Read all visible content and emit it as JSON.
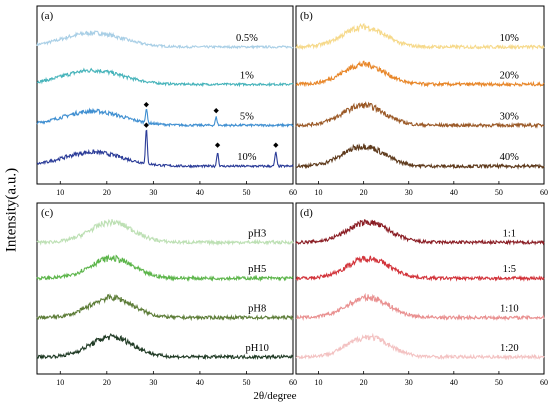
{
  "figure": {
    "ylabel": "Intensity(a.u.)",
    "xlabel": "2θ/degree",
    "line_color_note": ""
  },
  "chart_data": [
    {
      "type": "line",
      "panel_label": "(a)",
      "xlim": [
        5,
        60
      ],
      "xticks": [
        10,
        20,
        30,
        40,
        50,
        60
      ],
      "y_ticks_shown": false,
      "series": [
        {
          "name": "0.5%",
          "color": "#a9cfe6",
          "offset": 3,
          "peak_x": 17,
          "peaks": []
        },
        {
          "name": "1%",
          "color": "#45b3ba",
          "offset": 2,
          "peak_x": 17,
          "peaks": []
        },
        {
          "name": "5%",
          "color": "#3f8fd1",
          "offset": 1,
          "peak_x": 17,
          "peaks": [
            28.5,
            43.5
          ]
        },
        {
          "name": "10%",
          "color": "#2b3c98",
          "offset": 0,
          "peak_x": 17,
          "peaks": [
            28.5,
            43.8,
            56.3
          ]
        }
      ],
      "annotations": [
        {
          "marker": "◆",
          "x": 28.5,
          "series": "5%"
        },
        {
          "marker": "◆",
          "x": 43.5,
          "series": "5%"
        },
        {
          "marker": "◆",
          "x": 28.5,
          "series": "10%"
        },
        {
          "marker": "◆",
          "x": 43.8,
          "series": "10%"
        },
        {
          "marker": "◆",
          "x": 56.3,
          "series": "10%"
        }
      ]
    },
    {
      "type": "line",
      "panel_label": "(b)",
      "xlim": [
        5,
        60
      ],
      "xticks": [
        10,
        20,
        30,
        40,
        50,
        60
      ],
      "y_ticks_shown": false,
      "series": [
        {
          "name": "10%",
          "color": "#f6d98a",
          "offset": 3,
          "peak_x": 20
        },
        {
          "name": "20%",
          "color": "#e8872a",
          "offset": 2,
          "peak_x": 20
        },
        {
          "name": "30%",
          "color": "#9b5a28",
          "offset": 1,
          "peak_x": 20
        },
        {
          "name": "40%",
          "color": "#5e3a1c",
          "offset": 0,
          "peak_x": 20
        }
      ]
    },
    {
      "type": "line",
      "panel_label": "(c)",
      "xlim": [
        5,
        60
      ],
      "xticks": [
        10,
        20,
        30,
        40,
        50,
        60
      ],
      "y_ticks_shown": false,
      "series": [
        {
          "name": "pH3",
          "color": "#bde0b4",
          "offset": 3,
          "peak_x": 21
        },
        {
          "name": "pH5",
          "color": "#5cb54a",
          "offset": 2,
          "peak_x": 21
        },
        {
          "name": "pH8",
          "color": "#5d7d38",
          "offset": 1,
          "peak_x": 21
        },
        {
          "name": "pH10",
          "color": "#1f3a24",
          "offset": 0,
          "peak_x": 21
        }
      ]
    },
    {
      "type": "line",
      "panel_label": "(d)",
      "xlim": [
        5,
        60
      ],
      "xticks": [
        10,
        20,
        30,
        40,
        50,
        60
      ],
      "y_ticks_shown": false,
      "series": [
        {
          "name": "1:1",
          "color": "#8a1d24",
          "offset": 3,
          "peak_x": 21
        },
        {
          "name": "1:5",
          "color": "#d2333a",
          "offset": 2,
          "peak_x": 21
        },
        {
          "name": "1:10",
          "color": "#e99090",
          "offset": 1,
          "peak_x": 21
        },
        {
          "name": "1:20",
          "color": "#f3c2c2",
          "offset": 0,
          "peak_x": 21
        }
      ]
    }
  ]
}
